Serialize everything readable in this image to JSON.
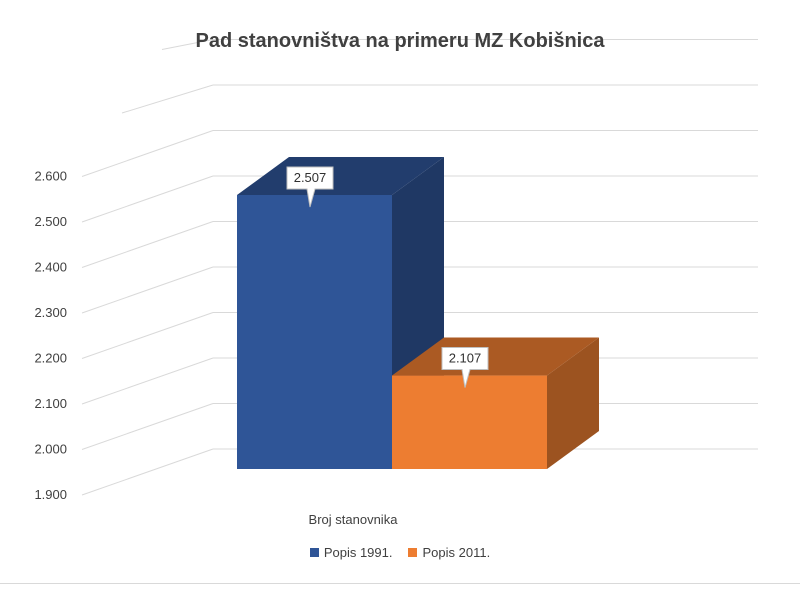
{
  "chart_data": {
    "type": "bar",
    "title": "Pad stanovništva na primeru MZ Kobišnica",
    "categories": [
      "Broj stanovnika"
    ],
    "series": [
      {
        "name": "Popis 1991.",
        "values": [
          2507
        ],
        "label": "2.507",
        "color": "#2F5597"
      },
      {
        "name": "Popis 2011.",
        "values": [
          2107
        ],
        "label": "2.107",
        "color": "#ED7D31"
      }
    ],
    "ylim": [
      1900,
      2600
    ],
    "yticks": [
      1900,
      2000,
      2100,
      2200,
      2300,
      2400,
      2500,
      2600
    ],
    "ytick_labels": [
      "1.900",
      "2.000",
      "2.100",
      "2.200",
      "2.300",
      "2.400",
      "2.500",
      "2.600"
    ],
    "grid": true,
    "legend_position": "bottom",
    "style": "3d-column"
  }
}
